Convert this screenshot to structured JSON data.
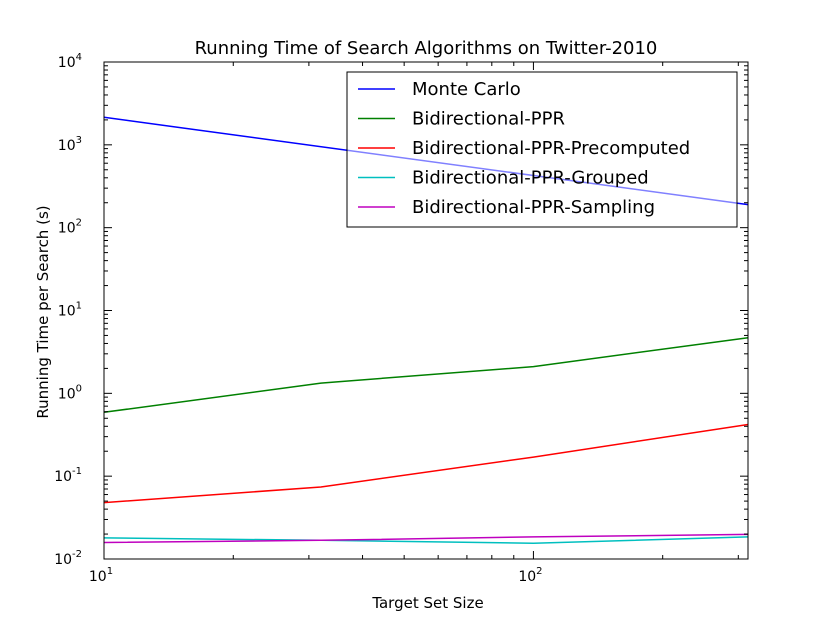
{
  "chart_data": {
    "type": "line",
    "title": "Running Time of Search Algorithms on Twitter-2010",
    "xlabel": "Target Set Size",
    "ylabel": "Running Time per Search (s)",
    "xscale": "log",
    "yscale": "log",
    "xlim": [
      10,
      316
    ],
    "ylim": [
      0.01,
      10000
    ],
    "x_ticks": [
      {
        "value": 10,
        "base": "10",
        "exp": "1"
      },
      {
        "value": 100,
        "base": "10",
        "exp": "2"
      }
    ],
    "y_ticks": [
      {
        "value": 0.01,
        "base": "10",
        "exp": "-2"
      },
      {
        "value": 0.1,
        "base": "10",
        "exp": "-1"
      },
      {
        "value": 1,
        "base": "10",
        "exp": "0"
      },
      {
        "value": 10,
        "base": "10",
        "exp": "1"
      },
      {
        "value": 100,
        "base": "10",
        "exp": "2"
      },
      {
        "value": 1000,
        "base": "10",
        "exp": "3"
      },
      {
        "value": 10000,
        "base": "10",
        "exp": "4"
      }
    ],
    "legend_position": "top-right",
    "series": [
      {
        "name": "Monte Carlo",
        "color": "#0000ff",
        "x": [
          10,
          316
        ],
        "y": [
          2150,
          190
        ]
      },
      {
        "name": "Bidirectional-PPR",
        "color": "#008000",
        "x": [
          10,
          32,
          100,
          316
        ],
        "y": [
          0.59,
          1.33,
          2.1,
          4.7
        ]
      },
      {
        "name": "Bidirectional-PPR-Precomputed",
        "color": "#ff0000",
        "x": [
          10,
          32,
          100,
          316
        ],
        "y": [
          0.048,
          0.074,
          0.17,
          0.42
        ]
      },
      {
        "name": "Bidirectional-PPR-Grouped",
        "color": "#00bfbf",
        "x": [
          10,
          32,
          100,
          316
        ],
        "y": [
          0.018,
          0.0168,
          0.0155,
          0.0185
        ]
      },
      {
        "name": "Bidirectional-PPR-Sampling",
        "color": "#bf00bf",
        "x": [
          10,
          32,
          100,
          316
        ],
        "y": [
          0.0158,
          0.0168,
          0.0185,
          0.0198
        ]
      }
    ]
  }
}
